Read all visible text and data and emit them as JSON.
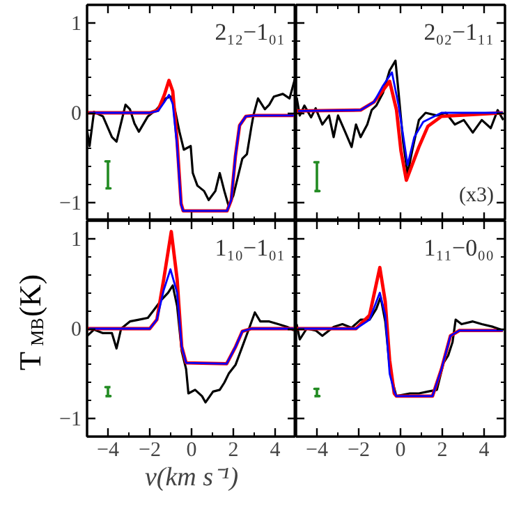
{
  "chart_data": [
    {
      "type": "line",
      "xlim": [
        -5,
        5
      ],
      "ylim": [
        -1.2,
        1.2
      ],
      "tick_labels": "y",
      "annotations": [
        "2₁₂−1₀₁"
      ],
      "xticks": [
        -4,
        {
          "value": -3,
          "label": null
        },
        -2,
        {
          "value": -1,
          "label": null
        },
        0,
        {
          "value": 1,
          "label": null
        },
        2,
        {
          "value": 3,
          "label": null
        },
        4
      ],
      "yticks": [
        -1,
        {
          "value": -0.8,
          "label": null
        },
        {
          "value": -0.6,
          "label": null
        },
        {
          "value": -0.4,
          "label": null
        },
        {
          "value": -0.2,
          "label": null
        },
        0,
        {
          "value": 0.2,
          "label": null
        },
        {
          "value": 0.4,
          "label": null
        },
        {
          "value": 0.6,
          "label": null
        },
        {
          "value": 0.8,
          "label": null
        },
        1
      ],
      "series": [
        {
          "color": "#000000",
          "x": [
            -4.99,
            -4.88,
            -4.67,
            -4.24,
            -3.81,
            -3.59,
            -3.16,
            -2.95,
            -2.73,
            -2.52,
            -2.09,
            -1.66,
            -1.23,
            -1.01,
            -0.8,
            -0.58,
            -0.37,
            -0.04,
            0.06,
            0.28,
            0.6,
            0.82,
            1.14,
            1.35,
            1.57,
            1.78,
            2.0,
            2.22,
            2.43,
            2.65,
            2.86,
            2.97,
            3.18,
            3.51,
            3.72,
            3.94,
            4.37,
            4.69,
            4.95
          ],
          "values": [
            -0.21,
            -0.37,
            0.01,
            -0.04,
            -0.27,
            -0.32,
            0.09,
            0.04,
            -0.12,
            -0.21,
            -0.04,
            0.04,
            0.16,
            0.18,
            0.04,
            -0.21,
            -0.41,
            -0.37,
            -0.67,
            -0.81,
            -0.87,
            -0.97,
            -0.87,
            -0.67,
            -0.87,
            -1.04,
            -0.92,
            -0.71,
            -0.51,
            -0.46,
            -0.16,
            -0.02,
            0.16,
            0.04,
            0.09,
            0.18,
            0.21,
            0.16,
            0.38
          ]
        },
        {
          "color": "#ff0000",
          "x": [
            -5,
            -2,
            -1.6,
            -1.3,
            -1.08,
            -0.9,
            -0.7,
            -0.5,
            -0.4,
            1.7,
            1.9,
            2.1,
            2.3,
            2.6,
            3,
            4.9
          ],
          "values": [
            0,
            0,
            0.03,
            0.2,
            0.36,
            0.24,
            -0.29,
            -1.01,
            -1.09,
            -1.09,
            -0.97,
            -0.48,
            -0.14,
            -0.04,
            -0.03,
            -0.03
          ]
        },
        {
          "color": "#0000ff",
          "x": [
            -4.9,
            -2,
            -1.6,
            -1.3,
            -1.08,
            -0.9,
            -0.7,
            -0.5,
            -0.4,
            1.7,
            1.9,
            2.1,
            2.3,
            2.6,
            3,
            4.9
          ],
          "values": [
            0,
            0,
            0.02,
            0.12,
            0.2,
            0.1,
            -0.35,
            -1.02,
            -1.09,
            -1.09,
            -0.97,
            -0.48,
            -0.14,
            -0.04,
            -0.03,
            -0.03
          ]
        },
        {
          "color": "#228b22",
          "x": [
            -4.12,
            -3.88,
            -4,
            -4,
            -4.12,
            -3.88
          ],
          "values": [
            -0.84,
            -0.84,
            -0.84,
            -0.54,
            -0.54,
            -0.54
          ]
        }
      ]
    },
    {
      "type": "line",
      "xlim": [
        -5,
        5
      ],
      "ylim": [
        -1.2,
        1.2
      ],
      "tick_labels": false,
      "annotations": [
        "2₀₂−1₁₁",
        "(x3)"
      ],
      "xticks": [
        -4,
        {
          "value": -3,
          "label": null
        },
        -2,
        {
          "value": -1,
          "label": null
        },
        0,
        {
          "value": 1,
          "label": null
        },
        2,
        {
          "value": 3,
          "label": null
        },
        4
      ],
      "yticks": [
        -1,
        {
          "value": -0.8,
          "label": null
        },
        {
          "value": -0.6,
          "label": null
        },
        {
          "value": -0.4,
          "label": null
        },
        {
          "value": -0.2,
          "label": null
        },
        0,
        {
          "value": 0.2,
          "label": null
        },
        {
          "value": 0.4,
          "label": null
        },
        {
          "value": 0.6,
          "label": null
        },
        {
          "value": 0.8,
          "label": null
        },
        1
      ],
      "series": [
        {
          "color": "#000000",
          "x": [
            -4.97,
            -4.82,
            -4.6,
            -4.28,
            -4.06,
            -3.74,
            -3.42,
            -3.2,
            -2.99,
            -2.67,
            -2.34,
            -2.13,
            -1.91,
            -1.59,
            -1.38,
            -1.16,
            -0.84,
            -0.52,
            -0.24,
            -0.09,
            0.13,
            0.34,
            0.56,
            0.88,
            1.2,
            1.74,
            2.17,
            2.6,
            3.03,
            3.46,
            3.89,
            4.32,
            4.65,
            4.92
          ],
          "values": [
            0.17,
            -0.03,
            0.08,
            -0.05,
            0.05,
            -0.13,
            -0.03,
            -0.27,
            -0.03,
            -0.2,
            -0.38,
            -0.13,
            -0.27,
            -0.13,
            0.03,
            0.08,
            0.22,
            0.47,
            0.58,
            0.22,
            -0.33,
            -0.68,
            -0.42,
            -0.08,
            0,
            -0.03,
            0,
            -0.13,
            -0.08,
            -0.22,
            -0.08,
            -0.17,
            0.03,
            -0.08
          ]
        },
        {
          "color": "#ff0000",
          "x": [
            -5,
            -1.91,
            -1.27,
            -0.84,
            -0.52,
            -0.19,
            0.02,
            0.28,
            0.88,
            1.31,
            1.96,
            4.9
          ],
          "values": [
            0.02,
            0.03,
            0.12,
            0.25,
            0.35,
            0.03,
            -0.42,
            -0.75,
            -0.38,
            -0.15,
            -0.04,
            0
          ]
        },
        {
          "color": "#0000ff",
          "x": [
            -4.9,
            -1.91,
            -1.27,
            -0.84,
            -0.41,
            -0.09,
            0.34,
            0.66,
            1.09,
            1.96,
            4.9
          ],
          "values": [
            0.02,
            0.03,
            0.12,
            0.3,
            0.45,
            0.08,
            -0.58,
            -0.27,
            -0.1,
            0,
            0
          ]
        },
        {
          "color": "#228b22",
          "x": [
            -4.12,
            -3.88,
            -4,
            -4,
            -4.12,
            -3.88
          ],
          "values": [
            -0.87,
            -0.87,
            -0.87,
            -0.55,
            -0.55,
            -0.55
          ]
        }
      ]
    },
    {
      "type": "line",
      "xlim": [
        -5,
        5
      ],
      "ylim": [
        -1.2,
        1.2
      ],
      "xlabel": "v(km s⁻¹)",
      "ylabel": "T$_{MB}$(K)",
      "annotations": [
        "1₁₀−1₀₁"
      ],
      "xticks": [
        -4,
        {
          "value": -3,
          "label": null
        },
        -2,
        {
          "value": -1,
          "label": null
        },
        0,
        {
          "value": 1,
          "label": null
        },
        2,
        {
          "value": 3,
          "label": null
        },
        4
      ],
      "yticks": [
        -1,
        {
          "value": -0.8,
          "label": null
        },
        {
          "value": -0.6,
          "label": null
        },
        {
          "value": -0.4,
          "label": null
        },
        {
          "value": -0.2,
          "label": null
        },
        0,
        {
          "value": 0.2,
          "label": null
        },
        {
          "value": 0.4,
          "label": null
        },
        {
          "value": 0.6,
          "label": null
        },
        {
          "value": 0.8,
          "label": null
        },
        1
      ],
      "series": [
        {
          "color": "#000000",
          "x": [
            -4.99,
            -4.67,
            -4.24,
            -3.81,
            -3.59,
            -3.37,
            -2.95,
            -2.52,
            -2.09,
            -1.76,
            -1.44,
            -1.12,
            -0.9,
            -0.69,
            -0.47,
            -0.26,
            -0.15,
            0.17,
            0.5,
            0.67,
            1.03,
            1.35,
            1.57,
            1.78,
            2.11,
            2.43,
            2.75,
            3.03,
            3.29,
            3.72,
            4.15,
            4.58,
            4.9
          ],
          "values": [
            -0.08,
            -0.01,
            -0.05,
            -0.05,
            -0.22,
            0,
            0.08,
            0.1,
            0.12,
            0.22,
            0.32,
            0.4,
            0.48,
            0.25,
            -0.25,
            -0.45,
            -0.72,
            -0.68,
            -0.75,
            -0.82,
            -0.7,
            -0.68,
            -0.6,
            -0.5,
            -0.4,
            -0.2,
            0,
            0.18,
            0.08,
            0.08,
            0.05,
            0.02,
            -0.02
          ]
        },
        {
          "color": "#ff0000",
          "x": [
            -5,
            -2,
            -1.66,
            -1.33,
            -0.97,
            -0.69,
            -0.47,
            -0.26,
            1.68,
            2.11,
            2.43,
            2.86,
            4.9
          ],
          "values": [
            0,
            0,
            0.1,
            0.55,
            1.08,
            0.55,
            -0.2,
            -0.38,
            -0.39,
            -0.2,
            -0.03,
            0,
            0
          ]
        },
        {
          "color": "#0000ff",
          "x": [
            -4.9,
            -2,
            -1.66,
            -1.33,
            -1.01,
            -0.69,
            -0.47,
            -0.26,
            1.68,
            2.11,
            2.43,
            2.86,
            4.9
          ],
          "values": [
            0,
            0,
            0.1,
            0.43,
            0.66,
            0.4,
            -0.2,
            -0.38,
            -0.39,
            -0.2,
            -0.03,
            0,
            0
          ]
        },
        {
          "color": "#228b22",
          "x": [
            -4.12,
            -3.88,
            -4,
            -4,
            -4.12,
            -3.88
          ],
          "values": [
            -0.75,
            -0.75,
            -0.75,
            -0.65,
            -0.65,
            -0.65
          ]
        }
      ]
    },
    {
      "type": "line",
      "xlim": [
        -5,
        5
      ],
      "ylim": [
        -1.2,
        1.2
      ],
      "tick_labels": "x",
      "annotations": [
        "1₁₁−0₀₀"
      ],
      "xticks": [
        -4,
        {
          "value": -3,
          "label": null
        },
        -2,
        {
          "value": -1,
          "label": null
        },
        0,
        {
          "value": 1,
          "label": null
        },
        2,
        {
          "value": 3,
          "label": null
        },
        4
      ],
      "yticks": [
        -1,
        {
          "value": -0.8,
          "label": null
        },
        {
          "value": -0.6,
          "label": null
        },
        {
          "value": -0.4,
          "label": null
        },
        {
          "value": -0.2,
          "label": null
        },
        0,
        {
          "value": 0.2,
          "label": null
        },
        {
          "value": 0.4,
          "label": null
        },
        {
          "value": 0.6,
          "label": null
        },
        {
          "value": 0.8,
          "label": null
        },
        1
      ],
      "series": [
        {
          "color": "#000000",
          "x": [
            -4.97,
            -4.82,
            -4.49,
            -4.06,
            -3.74,
            -3.2,
            -2.78,
            -2.34,
            -1.91,
            -1.48,
            -1.16,
            -0.95,
            -0.73,
            -0.52,
            -0.37,
            -0.2,
            0.45,
            0.88,
            1.31,
            1.74,
            2.06,
            2.28,
            2.49,
            2.64,
            2.92,
            3.46,
            3.89,
            4.43,
            4.92
          ],
          "values": [
            0.05,
            -0.12,
            0,
            -0.02,
            -0.08,
            0.02,
            0.05,
            0.01,
            0.1,
            0.1,
            0.22,
            0.35,
            0.08,
            -0.42,
            -0.6,
            -0.75,
            -0.72,
            -0.72,
            -0.7,
            -0.68,
            -0.38,
            -0.3,
            -0.15,
            0.1,
            0.05,
            0.08,
            0.05,
            0.02,
            -0.02
          ]
        },
        {
          "color": "#ff0000",
          "x": [
            -5,
            -2.13,
            -1.48,
            -0.99,
            -0.73,
            -0.52,
            -0.3,
            -0.2,
            1.53,
            1.96,
            2.39,
            2.82,
            4.9
          ],
          "values": [
            0,
            0,
            0.15,
            0.68,
            0.3,
            -0.35,
            -0.72,
            -0.75,
            -0.75,
            -0.45,
            -0.08,
            -0.02,
            -0.02
          ]
        },
        {
          "color": "#0000ff",
          "x": [
            -4.9,
            -2.13,
            -1.48,
            -0.99,
            -0.73,
            -0.52,
            -0.3,
            -0.2,
            1.53,
            1.96,
            2.39,
            2.82,
            4.9
          ],
          "values": [
            0,
            0,
            0.1,
            0.4,
            0.15,
            -0.5,
            -0.7,
            -0.75,
            -0.75,
            -0.45,
            -0.08,
            -0.02,
            -0.02
          ]
        },
        {
          "color": "#228b22",
          "x": [
            -4.12,
            -3.88,
            -4,
            -4,
            -4.12,
            -3.88
          ],
          "values": [
            -0.75,
            -0.75,
            -0.75,
            -0.67,
            -0.67,
            -0.67
          ]
        }
      ]
    }
  ]
}
